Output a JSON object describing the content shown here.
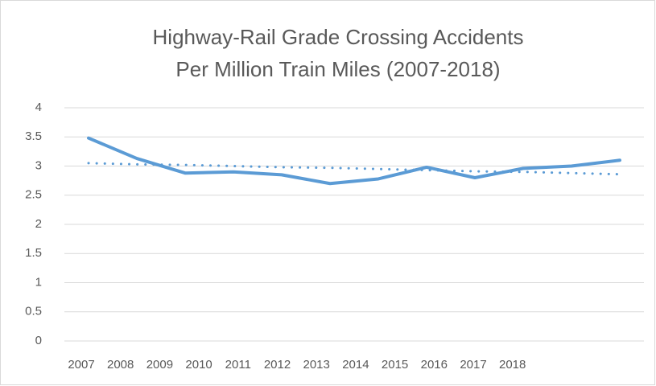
{
  "chart_data": {
    "type": "line",
    "title": [
      "Highway-Rail Grade Crossing Accidents",
      "Per Million Train Miles (2007-2018)"
    ],
    "categories": [
      "2007",
      "2008",
      "2009",
      "2010",
      "2011",
      "2012",
      "2013",
      "2014",
      "2015",
      "2016",
      "2017",
      "2018"
    ],
    "series": [
      {
        "color": "#5b9bd5",
        "style": "solid",
        "values": [
          3.48,
          3.13,
          2.88,
          2.9,
          2.85,
          2.7,
          2.78,
          2.98,
          2.8,
          2.96,
          3.0,
          3.1
        ]
      },
      {
        "color": "#5b9bd5",
        "style": "dotted",
        "values": [
          3.05,
          3.03,
          3.02,
          3.0,
          2.98,
          2.97,
          2.95,
          2.93,
          2.91,
          2.9,
          2.88,
          2.86
        ]
      }
    ],
    "ylim": [
      0,
      4
    ],
    "yticks": [
      0,
      0.5,
      1,
      1.5,
      2,
      2.5,
      3,
      3.5,
      4
    ],
    "grid": true
  }
}
